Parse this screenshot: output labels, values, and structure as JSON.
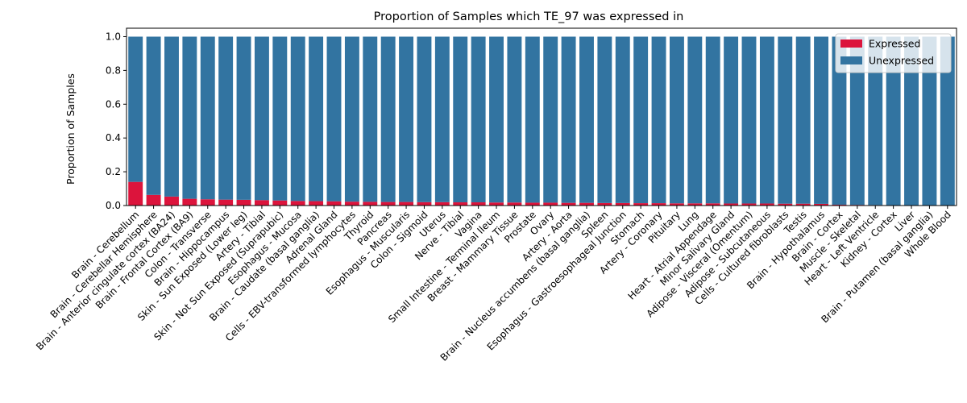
{
  "chart_data": {
    "type": "bar",
    "stacked": true,
    "title": "Proportion of Samples which TE_97 was expressed in",
    "xlabel": "",
    "ylabel": "Proportion of Samples",
    "ylim": [
      0,
      1.05
    ],
    "yticks": [
      "0.0",
      "0.2",
      "0.4",
      "0.6",
      "0.8",
      "1.0"
    ],
    "grid": false,
    "legend_position": "top-right",
    "categories": [
      "Brain - Cerebellum",
      "Brain - Cerebellar Hemisphere",
      "Brain - Anterior cingulate cortex (BA24)",
      "Brain - Frontal Cortex (BA9)",
      "Colon - Transverse",
      "Brain - Hippocampus",
      "Skin - Sun Exposed (Lower leg)",
      "Artery - Tibial",
      "Skin - Not Sun Exposed (Suprapubic)",
      "Esophagus - Mucosa",
      "Brain - Caudate (basal ganglia)",
      "Adrenal Gland",
      "Cells - EBV-transformed lymphocytes",
      "Thyroid",
      "Pancreas",
      "Esophagus - Muscularis",
      "Colon - Sigmoid",
      "Uterus",
      "Nerve - Tibial",
      "Vagina",
      "Small Intestine - Terminal Ileum",
      "Breast - Mammary Tissue",
      "Prostate",
      "Ovary",
      "Artery - Aorta",
      "Brain - Nucleus accumbens (basal ganglia)",
      "Spleen",
      "Esophagus - Gastroesophageal Junction",
      "Stomach",
      "Artery - Coronary",
      "Pituitary",
      "Lung",
      "Heart - Atrial Appendage",
      "Minor Salivary Gland",
      "Adipose - Visceral (Omentum)",
      "Adipose - Subcutaneous",
      "Cells - Cultured fibroblasts",
      "Testis",
      "Brain - Hypothalamus",
      "Brain - Cortex",
      "Muscle - Skeletal",
      "Heart - Left Ventricle",
      "Kidney - Cortex",
      "Liver",
      "Brain - Putamen (basal ganglia)",
      "Whole Blood"
    ],
    "series": [
      {
        "name": "Expressed",
        "color": "#dc143c",
        "values": [
          0.14,
          0.063,
          0.053,
          0.04,
          0.037,
          0.035,
          0.034,
          0.032,
          0.03,
          0.027,
          0.026,
          0.025,
          0.023,
          0.022,
          0.021,
          0.021,
          0.02,
          0.02,
          0.019,
          0.019,
          0.018,
          0.018,
          0.017,
          0.017,
          0.016,
          0.016,
          0.015,
          0.015,
          0.014,
          0.014,
          0.013,
          0.013,
          0.013,
          0.012,
          0.012,
          0.012,
          0.011,
          0.011,
          0.01,
          0.005,
          0.004,
          0.003,
          0.002,
          0.002,
          0.001,
          0.0
        ]
      },
      {
        "name": "Unexpressed",
        "color": "#3274a1",
        "values": [
          0.86,
          0.937,
          0.947,
          0.96,
          0.963,
          0.965,
          0.966,
          0.968,
          0.97,
          0.973,
          0.974,
          0.975,
          0.977,
          0.978,
          0.979,
          0.979,
          0.98,
          0.98,
          0.981,
          0.981,
          0.982,
          0.982,
          0.983,
          0.983,
          0.984,
          0.984,
          0.985,
          0.985,
          0.986,
          0.986,
          0.987,
          0.987,
          0.987,
          0.988,
          0.988,
          0.988,
          0.989,
          0.989,
          0.99,
          0.995,
          0.996,
          0.997,
          0.998,
          0.998,
          0.999,
          1.0
        ]
      }
    ]
  }
}
